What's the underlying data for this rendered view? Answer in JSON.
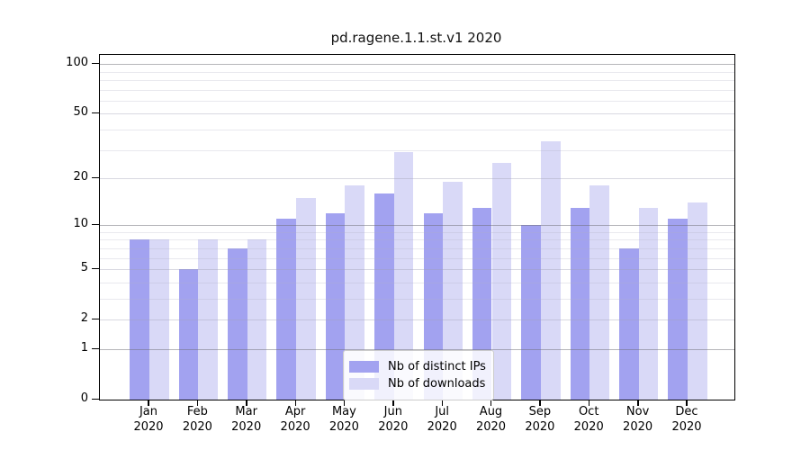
{
  "title": "pd.ragene.1.1.st.v1 2020",
  "chart_data": {
    "type": "bar",
    "title": "pd.ragene.1.1.st.v1 2020",
    "xlabel": "",
    "ylabel": "",
    "y_scale": "log1p",
    "ylim": [
      0,
      113
    ],
    "grid": true,
    "legend_position": "lower center",
    "categories": [
      {
        "month": "Jan",
        "year": "2020"
      },
      {
        "month": "Feb",
        "year": "2020"
      },
      {
        "month": "Mar",
        "year": "2020"
      },
      {
        "month": "Apr",
        "year": "2020"
      },
      {
        "month": "May",
        "year": "2020"
      },
      {
        "month": "Jun",
        "year": "2020"
      },
      {
        "month": "Jul",
        "year": "2020"
      },
      {
        "month": "Aug",
        "year": "2020"
      },
      {
        "month": "Sep",
        "year": "2020"
      },
      {
        "month": "Oct",
        "year": "2020"
      },
      {
        "month": "Nov",
        "year": "2020"
      },
      {
        "month": "Dec",
        "year": "2020"
      }
    ],
    "series": [
      {
        "name": "Nb of distinct IPs",
        "color": "#a2a2f0",
        "values": [
          8,
          5,
          7,
          11,
          12,
          16,
          12,
          13,
          10,
          13,
          7,
          11
        ]
      },
      {
        "name": "Nb of downloads",
        "color": "#d9d9f7",
        "values": [
          8,
          8,
          8,
          15,
          18,
          29,
          19,
          25,
          34,
          18,
          13,
          14
        ]
      }
    ],
    "y_major_ticks": [
      0,
      1,
      2,
      5,
      10,
      20,
      50,
      100
    ],
    "y_decade_gridlines": [
      1,
      10,
      100
    ],
    "y_minor_gridlines": [
      3,
      4,
      6,
      7,
      8,
      9,
      30,
      40,
      60,
      70,
      80,
      90
    ]
  },
  "legend": {
    "entries": [
      {
        "label": "Nb of distinct IPs",
        "color": "#a2a2f0"
      },
      {
        "label": "Nb of downloads",
        "color": "#d9d9f7"
      }
    ]
  }
}
